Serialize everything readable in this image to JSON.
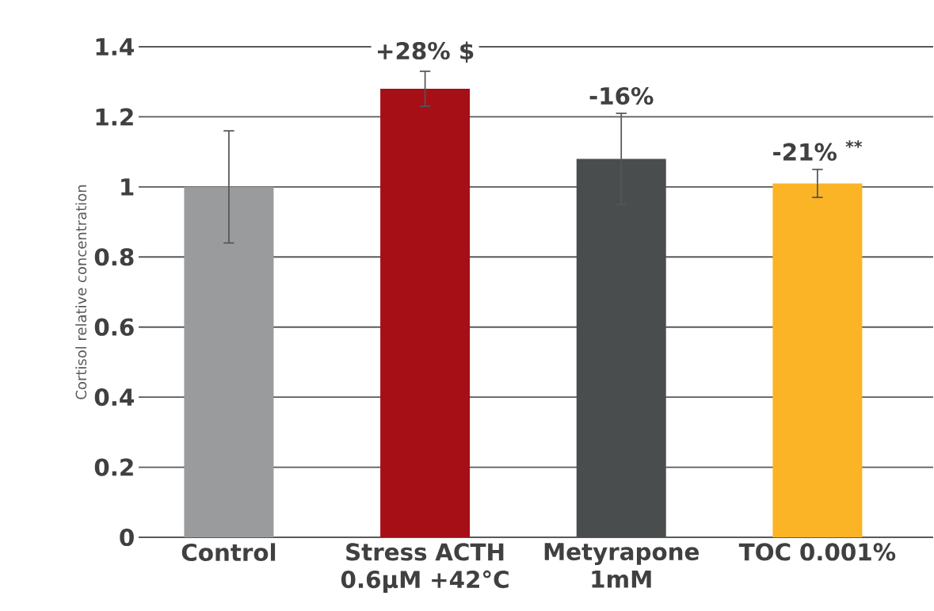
{
  "chart_data": {
    "type": "bar",
    "ylabel": "Cortisol relative concentration",
    "categories": [
      "Control",
      "Stress ACTH 0.6µM +42°C",
      "Metyrapone 1mM",
      "TOC 0.001%"
    ],
    "values": [
      1.0,
      1.28,
      1.08,
      1.01
    ],
    "errors": [
      0.16,
      0.05,
      0.13,
      0.04
    ],
    "colors": [
      "#9a9b9d",
      "#a50f15",
      "#4a4d4e",
      "#fbb426"
    ],
    "ylim": [
      0,
      1.4
    ],
    "yticks": [
      0,
      0.2,
      0.4,
      0.6,
      0.8,
      1,
      1.2,
      1.4
    ],
    "grid": "y",
    "annotations": [
      "+28% $",
      "-16%",
      "-21% $^{**}$"
    ]
  }
}
